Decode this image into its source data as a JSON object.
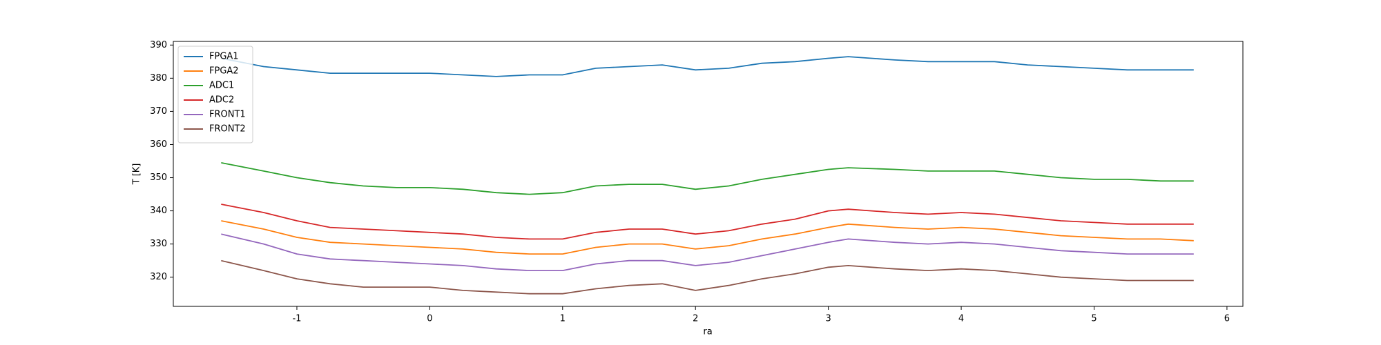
{
  "chart_data": {
    "type": "line",
    "xlabel": "ra",
    "ylabel": "T [K]",
    "x": [
      -1.57,
      -1.25,
      -1,
      -0.75,
      -0.5,
      -0.25,
      0,
      0.25,
      0.5,
      0.75,
      1,
      1.25,
      1.5,
      1.75,
      2,
      2.25,
      2.5,
      2.75,
      3,
      3.15,
      3.5,
      3.75,
      4,
      4.25,
      4.5,
      4.75,
      5,
      5.25,
      5.5,
      5.75
    ],
    "xlim": [
      -1.93,
      6.12
    ],
    "xticks": [
      -1,
      0,
      1,
      2,
      3,
      4,
      5,
      6
    ],
    "ylim": [
      311.2,
      391.1
    ],
    "yticks": [
      320,
      330,
      340,
      350,
      360,
      370,
      380,
      390
    ],
    "grid": false,
    "legend": "upper left",
    "series": [
      {
        "name": "FPGA1",
        "color": "#1f77b4",
        "values": [
          386,
          383.5,
          382.5,
          381.5,
          381.5,
          381.5,
          381.5,
          381,
          380.5,
          381,
          381,
          383,
          383.5,
          384,
          382.5,
          383,
          384.5,
          385,
          386,
          386.5,
          385.5,
          385,
          385,
          385,
          384,
          383.5,
          383,
          382.5,
          382.5,
          382.5
        ]
      },
      {
        "name": "FPGA2",
        "color": "#ff7f0e",
        "values": [
          337,
          334.5,
          332,
          330.5,
          330,
          329.5,
          329,
          328.5,
          327.5,
          327,
          327,
          329,
          330,
          330,
          328.5,
          329.5,
          331.5,
          333,
          335,
          336,
          335,
          334.5,
          335,
          334.5,
          333.5,
          332.5,
          332,
          331.5,
          331.5,
          331
        ]
      },
      {
        "name": "ADC1",
        "color": "#2ca02c",
        "values": [
          354.5,
          352,
          350,
          348.5,
          347.5,
          347,
          347,
          346.5,
          345.5,
          345,
          345.5,
          347.5,
          348,
          348,
          346.5,
          347.5,
          349.5,
          351,
          352.5,
          353,
          352.5,
          352,
          352,
          352,
          351,
          350,
          349.5,
          349.5,
          349,
          349
        ]
      },
      {
        "name": "ADC2",
        "color": "#d62728",
        "values": [
          342,
          339.5,
          337,
          335,
          334.5,
          334,
          333.5,
          333,
          332,
          331.5,
          331.5,
          333.5,
          334.5,
          334.5,
          333,
          334,
          336,
          337.5,
          340,
          340.5,
          339.5,
          339,
          339.5,
          339,
          338,
          337,
          336.5,
          336,
          336,
          336
        ]
      },
      {
        "name": "FRONT1",
        "color": "#9467bd",
        "values": [
          333,
          330,
          327,
          325.5,
          325,
          324.5,
          324,
          323.5,
          322.5,
          322,
          322,
          324,
          325,
          325,
          323.5,
          324.5,
          326.5,
          328.5,
          330.5,
          331.5,
          330.5,
          330,
          330.5,
          330,
          329,
          328,
          327.5,
          327,
          327,
          327
        ]
      },
      {
        "name": "FRONT2",
        "color": "#8c564b",
        "values": [
          325,
          322,
          319.5,
          318,
          317,
          317,
          317,
          316,
          315.5,
          315,
          315,
          316.5,
          317.5,
          318,
          316,
          317.5,
          319.5,
          321,
          323,
          323.5,
          322.5,
          322,
          322.5,
          322,
          321,
          320,
          319.5,
          319,
          319,
          319
        ]
      }
    ]
  }
}
